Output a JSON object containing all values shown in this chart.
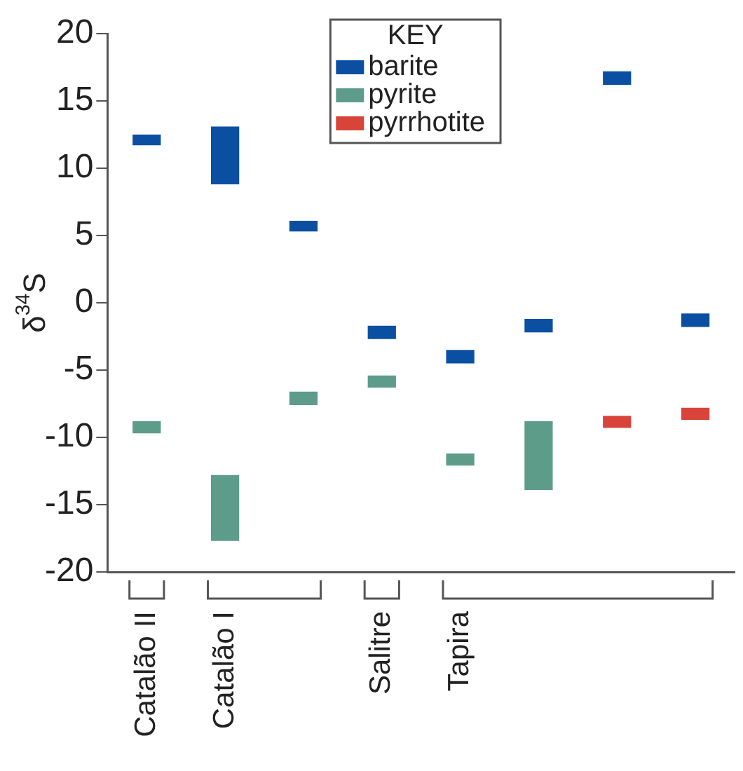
{
  "chart_data": {
    "type": "bar",
    "ylabel": "δ$^{34}$S",
    "legend_title": "KEY",
    "legend": "top",
    "categories": [
      "Catalão II",
      "Catalão I",
      null,
      "Salitre",
      "Tapira",
      null,
      null,
      null
    ],
    "ylim": [
      -20,
      20
    ],
    "yticks": [
      -20,
      -15,
      -10,
      -5,
      0,
      5,
      10,
      15,
      20
    ],
    "grid": false,
    "series": [
      {
        "name": "barite",
        "color": "#0b4fa3",
        "base": [
          11.7,
          8.8,
          5.3,
          -2.7,
          -4.5,
          -2.2,
          16.2,
          -1.8
        ],
        "values": [
          0.8,
          4.3,
          0.8,
          1.0,
          1.0,
          1.0,
          1.0,
          1.0
        ]
      },
      {
        "name": "pyrite",
        "color": "#5e9c8a",
        "base": [
          -9.7,
          -17.7,
          -7.6,
          -6.3,
          -12.1,
          -13.9,
          null,
          null
        ],
        "values": [
          0.9,
          4.9,
          1.0,
          0.9,
          0.9,
          5.1,
          null,
          null
        ]
      },
      {
        "name": "pyrrhotite",
        "color": "#d9443a",
        "base": [
          null,
          null,
          null,
          null,
          null,
          null,
          -9.3,
          -8.7
        ],
        "values": [
          null,
          null,
          null,
          null,
          null,
          null,
          0.9,
          0.9
        ]
      }
    ]
  }
}
